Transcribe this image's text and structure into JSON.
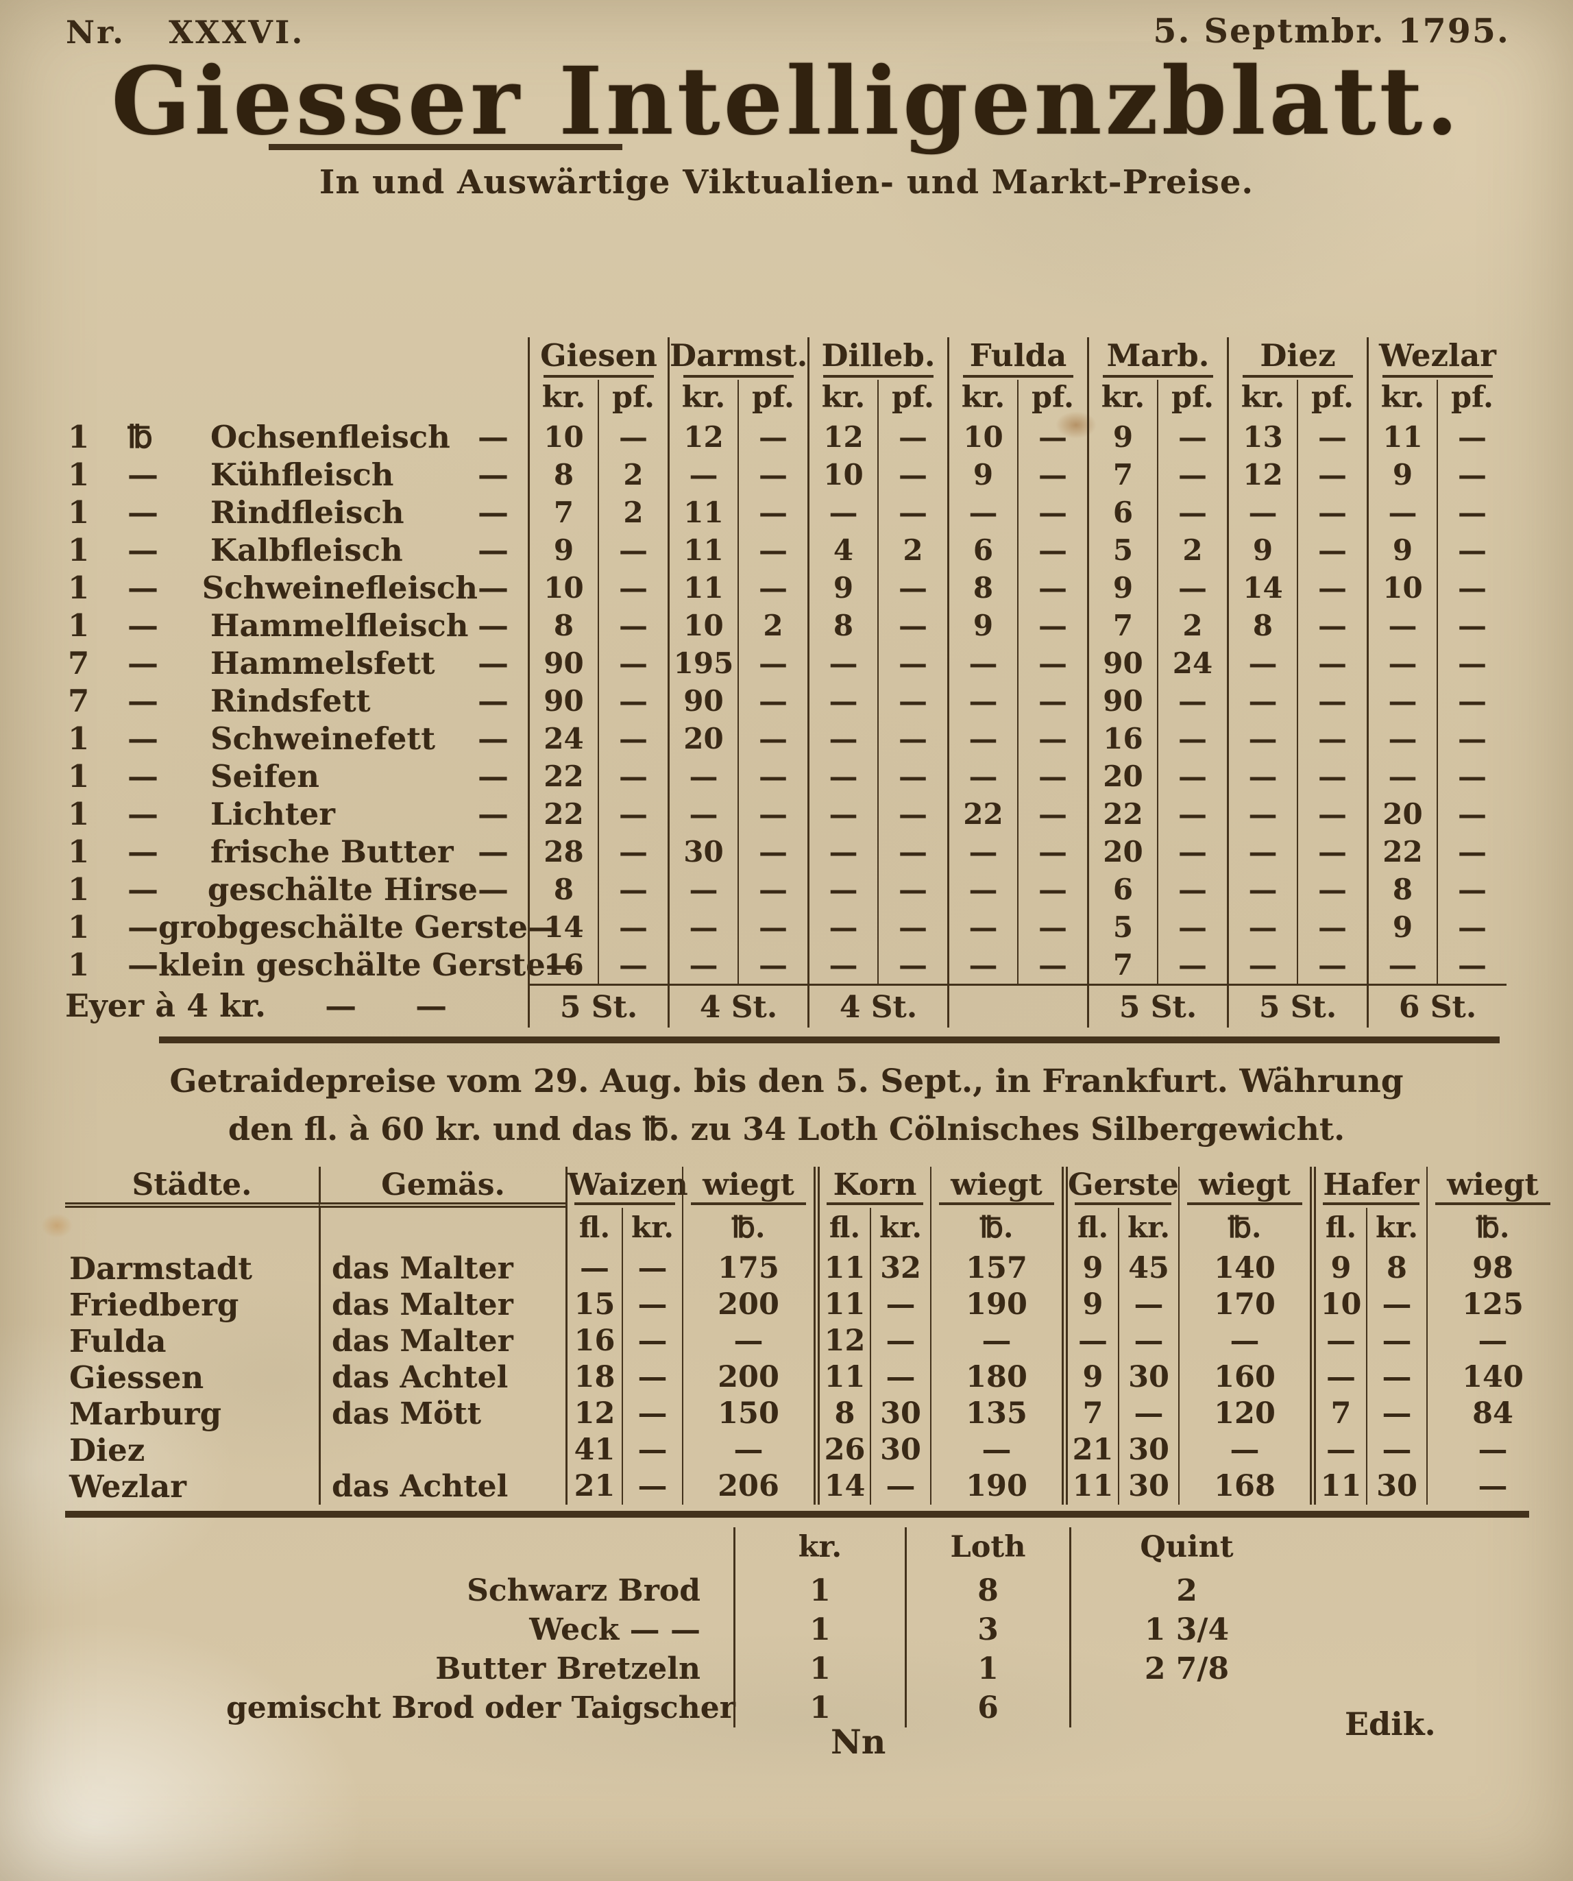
{
  "page": {
    "issue_number": "Nr. XXXVI.",
    "date": "5. Septmbr. 1795.",
    "title": "Giesser Intelligenzblatt.",
    "subtitle": "In und Auswärtige Viktualien- und Markt-Preise.",
    "signature_mark": "Nn",
    "catchword": "Edik.",
    "paper_color": "#d3c3a2",
    "ink_color": "#392916"
  },
  "market_table": {
    "cities": [
      "Giesen",
      "Darmst.",
      "Dilleb.",
      "Fulda",
      "Marb.",
      "Diez",
      "Wezlar"
    ],
    "unit_labels": [
      "kr.",
      "pf."
    ],
    "rows": [
      {
        "qty": "1 ℔",
        "label": "Ochsenfleisch",
        "trail": "—",
        "values": [
          "10",
          "—",
          "12",
          "—",
          "12",
          "—",
          "10",
          "—",
          "9",
          "—",
          "13",
          "—",
          "11",
          "—"
        ]
      },
      {
        "qty": "1 —",
        "label": "Kühfleisch",
        "trail": "—",
        "values": [
          "8",
          "2",
          "—",
          "—",
          "10",
          "—",
          "9",
          "—",
          "7",
          "—",
          "12",
          "—",
          "9",
          "—"
        ]
      },
      {
        "qty": "1 —",
        "label": "Rindfleisch",
        "trail": "—",
        "values": [
          "7",
          "2",
          "11",
          "—",
          "—",
          "—",
          "—",
          "—",
          "6",
          "—",
          "—",
          "—",
          "—",
          "—"
        ]
      },
      {
        "qty": "1 —",
        "label": "Kalbfleisch",
        "trail": "—",
        "values": [
          "9",
          "—",
          "11",
          "—",
          "4",
          "2",
          "6",
          "—",
          "5",
          "2",
          "9",
          "—",
          "9",
          "—"
        ]
      },
      {
        "qty": "1 —",
        "label": "Schweinefleisch",
        "trail": "—",
        "values": [
          "10",
          "—",
          "11",
          "—",
          "9",
          "—",
          "8",
          "—",
          "9",
          "—",
          "14",
          "—",
          "10",
          "—"
        ]
      },
      {
        "qty": "1 —",
        "label": "Hammelfleisch",
        "trail": "—",
        "values": [
          "8",
          "—",
          "10",
          "2",
          "8",
          "—",
          "9",
          "—",
          "7",
          "2",
          "8",
          "—",
          "—",
          "—"
        ]
      },
      {
        "qty": "7 —",
        "label": "Hammelsfett",
        "trail": "—",
        "values": [
          "90",
          "—",
          "195",
          "—",
          "—",
          "—",
          "—",
          "—",
          "90",
          "24",
          "—",
          "—",
          "—",
          "—"
        ]
      },
      {
        "qty": "7 —",
        "label": "Rindsfett",
        "trail": "—",
        "values": [
          "90",
          "—",
          "90",
          "—",
          "—",
          "—",
          "—",
          "—",
          "90",
          "—",
          "—",
          "—",
          "—",
          "—"
        ]
      },
      {
        "qty": "1 —",
        "label": "Schweinefett",
        "trail": "—",
        "values": [
          "24",
          "—",
          "20",
          "—",
          "—",
          "—",
          "—",
          "—",
          "16",
          "—",
          "—",
          "—",
          "—",
          "—"
        ]
      },
      {
        "qty": "1 —",
        "label": "Seifen",
        "trail": "—",
        "values": [
          "22",
          "—",
          "—",
          "—",
          "—",
          "—",
          "—",
          "—",
          "20",
          "—",
          "—",
          "—",
          "—",
          "—"
        ]
      },
      {
        "qty": "1 —",
        "label": "Lichter",
        "trail": "—",
        "values": [
          "22",
          "—",
          "—",
          "—",
          "—",
          "—",
          "22",
          "—",
          "22",
          "—",
          "—",
          "—",
          "20",
          "—"
        ]
      },
      {
        "qty": "1 —",
        "label": "frische Butter",
        "trail": "—",
        "values": [
          "28",
          "—",
          "30",
          "—",
          "—",
          "—",
          "—",
          "—",
          "20",
          "—",
          "—",
          "—",
          "22",
          "—"
        ]
      },
      {
        "qty": "1 —",
        "label": "geschälte Hirse",
        "trail": "—",
        "values": [
          "8",
          "—",
          "—",
          "—",
          "—",
          "—",
          "—",
          "—",
          "6",
          "—",
          "—",
          "—",
          "8",
          "—"
        ]
      },
      {
        "qty": "1 —",
        "label": "grobgeschälte Gerste",
        "trail": "—",
        "values": [
          "14",
          "—",
          "—",
          "—",
          "—",
          "—",
          "—",
          "—",
          "5",
          "—",
          "—",
          "—",
          "9",
          "—"
        ]
      },
      {
        "qty": "1 —",
        "label": "klein geschälte Gerste",
        "trail": "—",
        "values": [
          "16",
          "—",
          "—",
          "—",
          "—",
          "—",
          "—",
          "—",
          "7",
          "—",
          "—",
          "—",
          "—",
          "—"
        ]
      }
    ],
    "eggs": {
      "label": "Eyer à 4 kr.",
      "dash1": "—",
      "dash2": "—",
      "values": [
        "5 St.",
        "4 St.",
        "4 St.",
        "",
        "5 St.",
        "5 St.",
        "6 St."
      ]
    }
  },
  "grain_table": {
    "heading_line1": "Getraidepreise vom 29. Aug. bis den 5. Sept., in Frankfurt. Währung",
    "heading_line2": "den fl. à 60 kr. und das ℔. zu 34 Loth Cölnisches Silbergewicht.",
    "col_city": "Städte.",
    "col_measure": "Gemäs.",
    "grains": [
      "Waizen",
      "Korn",
      "Gerste",
      "Hafer"
    ],
    "wiegt_label": "wiegt",
    "sub_fl": "fl.",
    "sub_kr": "kr.",
    "sub_lb": "℔.",
    "rows": [
      {
        "city": "Darmstadt",
        "measure": "das Malter",
        "cells": [
          "—",
          "—",
          "175",
          "11",
          "32",
          "157",
          "9",
          "45",
          "140",
          "9",
          "8",
          "98"
        ]
      },
      {
        "city": "Friedberg",
        "measure": "das Malter",
        "cells": [
          "15",
          "—",
          "200",
          "11",
          "—",
          "190",
          "9",
          "—",
          "170",
          "10",
          "—",
          "125"
        ]
      },
      {
        "city": "Fulda",
        "measure": "das Malter",
        "cells": [
          "16",
          "—",
          "—",
          "12",
          "—",
          "—",
          "—",
          "—",
          "—",
          "—",
          "—",
          "—"
        ]
      },
      {
        "city": "Giessen",
        "measure": "das Achtel",
        "cells": [
          "18",
          "—",
          "200",
          "11",
          "—",
          "180",
          "9",
          "30",
          "160",
          "—",
          "—",
          "140"
        ]
      },
      {
        "city": "Marburg",
        "measure": "das Mött",
        "cells": [
          "12",
          "—",
          "150",
          "8",
          "30",
          "135",
          "7",
          "—",
          "120",
          "7",
          "—",
          "84"
        ]
      },
      {
        "city": "Diez",
        "measure": "",
        "cells": [
          "41",
          "—",
          "—",
          "26",
          "30",
          "—",
          "21",
          "30",
          "—",
          "—",
          "—",
          "—"
        ]
      },
      {
        "city": "Wezlar",
        "measure": "das Achtel",
        "cells": [
          "21",
          "—",
          "206",
          "14",
          "—",
          "190",
          "11",
          "30",
          "168",
          "11",
          "30",
          "—"
        ]
      }
    ]
  },
  "bread_table": {
    "headers": [
      "kr.",
      "Loth",
      "Quint"
    ],
    "rows": [
      {
        "label": "Schwarz Brod",
        "kr": "1",
        "loth": "8",
        "quint": "2"
      },
      {
        "label": "Weck — —",
        "kr": "1",
        "loth": "3",
        "quint": "1 3/4"
      },
      {
        "label": "Butter Bretzeln",
        "kr": "1",
        "loth": "1",
        "quint": "2 7/8"
      },
      {
        "label": "gemischt Brod oder Taigscher",
        "kr": "1",
        "loth": "6",
        "quint": ""
      }
    ]
  }
}
